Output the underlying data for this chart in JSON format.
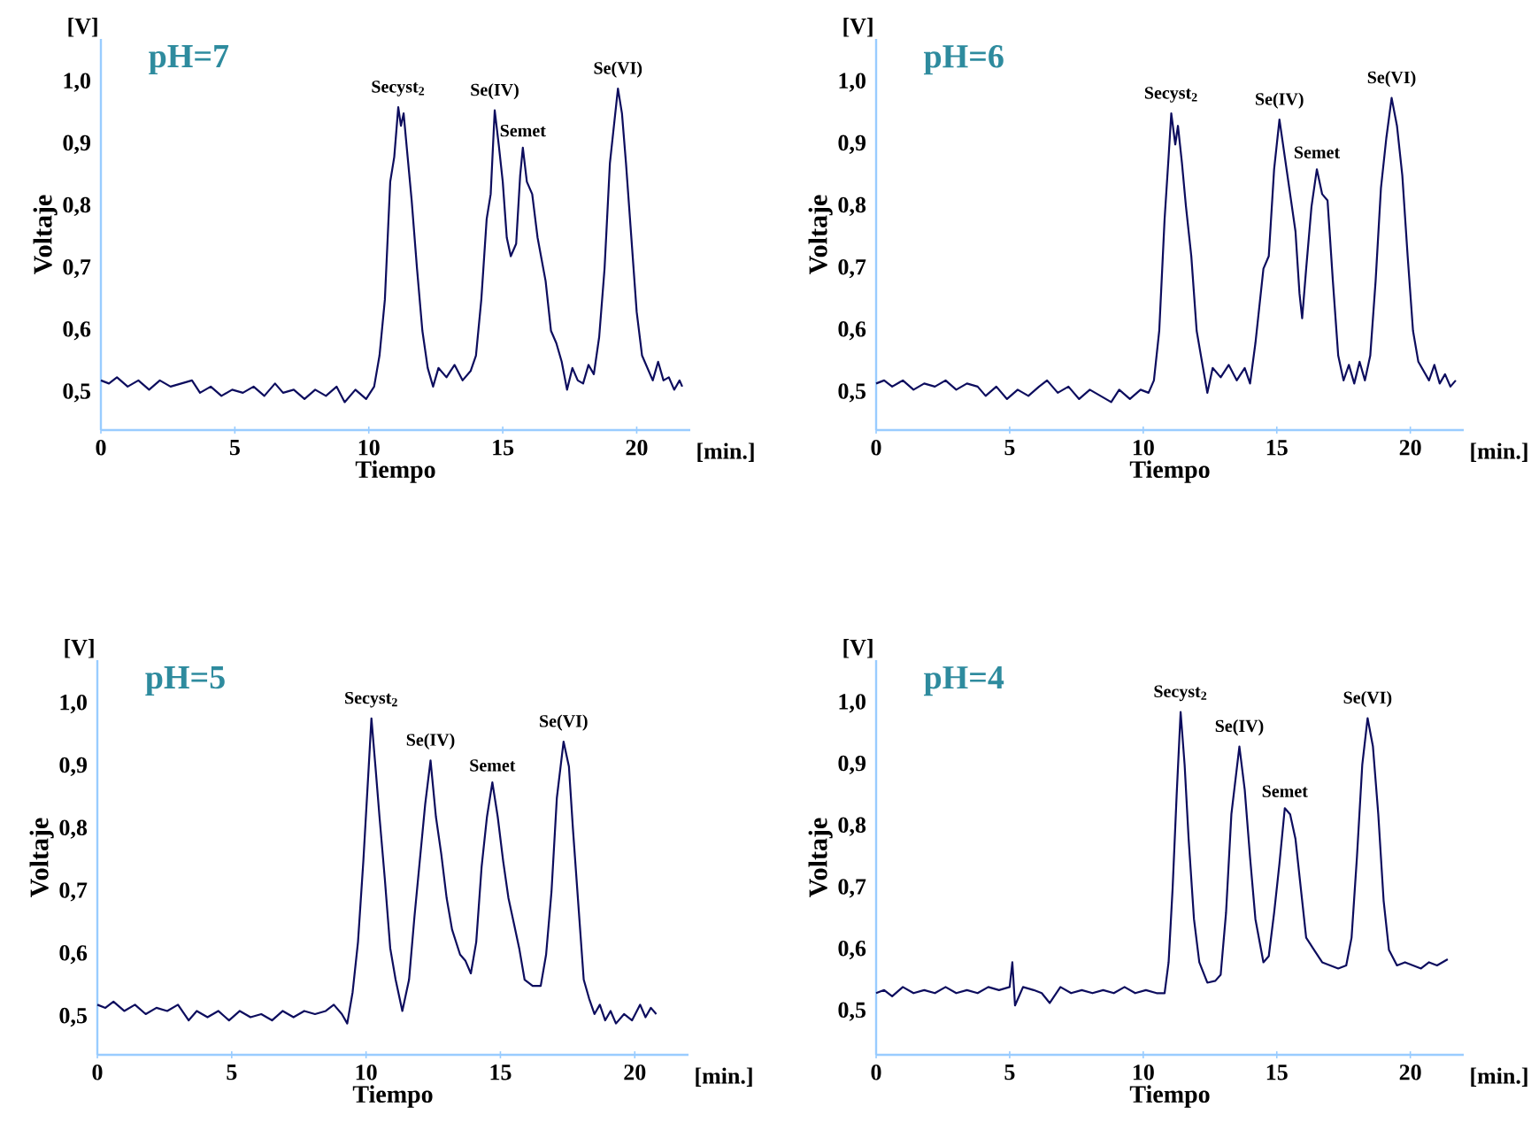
{
  "chart_data": [
    {
      "type": "line",
      "title": "pH=7",
      "xlabel": "Tiempo",
      "ylabel": "Voltaje",
      "color": "#0d0d5e",
      "xlim": [
        0,
        22
      ],
      "ylim": [
        0.44,
        1.07
      ],
      "xticks": [
        0,
        5,
        10,
        15,
        20
      ],
      "yticks": [
        {
          "value": 0.5,
          "label": "0,5"
        },
        {
          "value": 0.6,
          "label": "0,6"
        },
        {
          "value": 0.7,
          "label": "0,7"
        },
        {
          "value": 0.8,
          "label": "0,8"
        },
        {
          "value": 0.9,
          "label": "0,9"
        },
        {
          "value": 1.0,
          "label": "1,0"
        }
      ],
      "annotations": [
        "[V]",
        "[min.]",
        {
          "text": "Secyst$_{2}$",
          "x": 11.1,
          "y": 0.96
        },
        {
          "text": "Se(IV)",
          "x": 14.7,
          "y": 0.955
        },
        {
          "text": "Semet",
          "x": 15.75,
          "y": 0.895
        },
        {
          "text": "Se(VI)",
          "x": 19.3,
          "y": 0.99
        }
      ],
      "x": [
        0,
        0.3,
        0.6,
        1,
        1.4,
        1.8,
        2.2,
        2.6,
        3,
        3.4,
        3.7,
        4.1,
        4.5,
        4.9,
        5.3,
        5.7,
        6.1,
        6.5,
        6.8,
        7.2,
        7.6,
        8,
        8.4,
        8.8,
        9.1,
        9.5,
        9.9,
        10.2,
        10.4,
        10.6,
        10.8,
        10.95,
        11.1,
        11.2,
        11.3,
        11.45,
        11.6,
        11.8,
        12,
        12.2,
        12.4,
        12.6,
        12.9,
        13.2,
        13.5,
        13.8,
        14,
        14.2,
        14.4,
        14.55,
        14.7,
        14.85,
        15,
        15.15,
        15.3,
        15.5,
        15.65,
        15.75,
        15.9,
        16.1,
        16.3,
        16.6,
        16.8,
        17,
        17.2,
        17.4,
        17.6,
        17.8,
        18,
        18.2,
        18.4,
        18.6,
        18.8,
        19,
        19.15,
        19.3,
        19.45,
        19.6,
        19.8,
        20,
        20.2,
        20.4,
        20.6,
        20.8,
        21,
        21.2,
        21.4,
        21.6,
        21.7
      ],
      "values": [
        0.52,
        0.515,
        0.525,
        0.51,
        0.52,
        0.505,
        0.52,
        0.51,
        0.515,
        0.52,
        0.5,
        0.51,
        0.495,
        0.505,
        0.5,
        0.51,
        0.495,
        0.515,
        0.5,
        0.505,
        0.49,
        0.505,
        0.495,
        0.51,
        0.485,
        0.505,
        0.49,
        0.51,
        0.56,
        0.65,
        0.84,
        0.88,
        0.96,
        0.93,
        0.95,
        0.88,
        0.81,
        0.7,
        0.6,
        0.54,
        0.51,
        0.54,
        0.525,
        0.545,
        0.52,
        0.535,
        0.56,
        0.65,
        0.78,
        0.82,
        0.955,
        0.9,
        0.84,
        0.75,
        0.72,
        0.74,
        0.85,
        0.895,
        0.84,
        0.82,
        0.75,
        0.68,
        0.6,
        0.58,
        0.55,
        0.505,
        0.54,
        0.52,
        0.515,
        0.545,
        0.53,
        0.59,
        0.7,
        0.87,
        0.93,
        0.99,
        0.95,
        0.87,
        0.75,
        0.63,
        0.56,
        0.54,
        0.52,
        0.55,
        0.52,
        0.525,
        0.505,
        0.52,
        0.51
      ]
    },
    {
      "type": "line",
      "title": "pH=6",
      "xlabel": "Tiempo",
      "ylabel": "Voltaje",
      "color": "#0d0d5e",
      "xlim": [
        0,
        22
      ],
      "ylim": [
        0.44,
        1.07
      ],
      "xticks": [
        0,
        5,
        10,
        15,
        20
      ],
      "yticks": [
        {
          "value": 0.5,
          "label": "0,5"
        },
        {
          "value": 0.6,
          "label": "0,6"
        },
        {
          "value": 0.7,
          "label": "0,7"
        },
        {
          "value": 0.8,
          "label": "0,8"
        },
        {
          "value": 0.9,
          "label": "0,9"
        },
        {
          "value": 1.0,
          "label": "1,0"
        }
      ],
      "annotations": [
        "[V]",
        "[min.]",
        {
          "text": "Secyst$_{2}$",
          "x": 11.05,
          "y": 0.95
        },
        {
          "text": "Se(IV)",
          "x": 15.1,
          "y": 0.94
        },
        {
          "text": "Semet",
          "x": 16.5,
          "y": 0.86
        },
        {
          "text": "Se(VI)",
          "x": 19.3,
          "y": 0.975
        }
      ],
      "x": [
        0,
        0.3,
        0.6,
        1,
        1.4,
        1.8,
        2.2,
        2.6,
        3,
        3.4,
        3.8,
        4.1,
        4.5,
        4.9,
        5.3,
        5.7,
        6.1,
        6.4,
        6.8,
        7.2,
        7.6,
        8,
        8.4,
        8.8,
        9.1,
        9.5,
        9.9,
        10.2,
        10.4,
        10.6,
        10.8,
        10.95,
        11.05,
        11.2,
        11.3,
        11.45,
        11.6,
        11.8,
        12,
        12.2,
        12.4,
        12.6,
        12.9,
        13.2,
        13.5,
        13.8,
        14,
        14.2,
        14.5,
        14.7,
        14.9,
        15.1,
        15.3,
        15.5,
        15.7,
        15.85,
        15.95,
        16.1,
        16.3,
        16.5,
        16.7,
        16.9,
        17.1,
        17.3,
        17.5,
        17.7,
        17.9,
        18.1,
        18.3,
        18.5,
        18.7,
        18.9,
        19.1,
        19.3,
        19.5,
        19.7,
        19.9,
        20.1,
        20.3,
        20.5,
        20.7,
        20.9,
        21.1,
        21.3,
        21.5,
        21.7
      ],
      "values": [
        0.515,
        0.52,
        0.51,
        0.52,
        0.505,
        0.515,
        0.51,
        0.52,
        0.505,
        0.515,
        0.51,
        0.495,
        0.51,
        0.49,
        0.505,
        0.495,
        0.51,
        0.52,
        0.5,
        0.51,
        0.49,
        0.505,
        0.495,
        0.485,
        0.505,
        0.49,
        0.505,
        0.5,
        0.52,
        0.6,
        0.78,
        0.88,
        0.95,
        0.9,
        0.93,
        0.87,
        0.8,
        0.72,
        0.6,
        0.55,
        0.5,
        0.54,
        0.525,
        0.545,
        0.52,
        0.54,
        0.515,
        0.58,
        0.7,
        0.72,
        0.86,
        0.94,
        0.88,
        0.82,
        0.76,
        0.66,
        0.62,
        0.7,
        0.8,
        0.86,
        0.82,
        0.81,
        0.68,
        0.56,
        0.52,
        0.545,
        0.515,
        0.55,
        0.52,
        0.56,
        0.68,
        0.83,
        0.91,
        0.975,
        0.93,
        0.85,
        0.72,
        0.6,
        0.55,
        0.535,
        0.52,
        0.545,
        0.515,
        0.53,
        0.51,
        0.52
      ]
    },
    {
      "type": "line",
      "title": "pH=5",
      "xlabel": "Tiempo",
      "ylabel": "Voltaje",
      "color": "#0d0d5e",
      "xlim": [
        0,
        22
      ],
      "ylim": [
        0.44,
        1.07
      ],
      "xticks": [
        0,
        5,
        10,
        15,
        20
      ],
      "yticks": [
        {
          "value": 0.5,
          "label": "0,5"
        },
        {
          "value": 0.6,
          "label": "0,6"
        },
        {
          "value": 0.7,
          "label": "0,7"
        },
        {
          "value": 0.8,
          "label": "0,8"
        },
        {
          "value": 0.9,
          "label": "0,9"
        },
        {
          "value": 1.0,
          "label": "1,0"
        }
      ],
      "annotations": [
        "[V]",
        "[min.]",
        {
          "text": "Secyst$_{2}$",
          "x": 10.2,
          "y": 0.977
        },
        {
          "text": "Se(IV)",
          "x": 12.4,
          "y": 0.91
        },
        {
          "text": "Semet",
          "x": 14.7,
          "y": 0.875
        },
        {
          "text": "Se(VI)",
          "x": 17.35,
          "y": 0.94
        }
      ],
      "x": [
        0,
        0.3,
        0.6,
        1,
        1.4,
        1.8,
        2.2,
        2.6,
        3,
        3.4,
        3.7,
        4.1,
        4.5,
        4.9,
        5.3,
        5.7,
        6.1,
        6.5,
        6.9,
        7.3,
        7.7,
        8.1,
        8.5,
        8.8,
        9.1,
        9.3,
        9.5,
        9.7,
        9.9,
        10.1,
        10.2,
        10.35,
        10.5,
        10.7,
        10.9,
        11.1,
        11.35,
        11.6,
        11.8,
        12.0,
        12.2,
        12.4,
        12.6,
        12.8,
        13.0,
        13.2,
        13.5,
        13.7,
        13.9,
        14.1,
        14.3,
        14.5,
        14.7,
        14.9,
        15.1,
        15.3,
        15.5,
        15.7,
        15.9,
        16.2,
        16.5,
        16.7,
        16.9,
        17.1,
        17.35,
        17.55,
        17.7,
        17.9,
        18.1,
        18.3,
        18.5,
        18.7,
        18.9,
        19.1,
        19.3,
        19.6,
        19.9,
        20.2,
        20.4,
        20.6,
        20.8
      ],
      "values": [
        0.52,
        0.515,
        0.525,
        0.51,
        0.52,
        0.505,
        0.515,
        0.51,
        0.52,
        0.495,
        0.51,
        0.5,
        0.51,
        0.495,
        0.51,
        0.5,
        0.505,
        0.495,
        0.51,
        0.5,
        0.51,
        0.505,
        0.51,
        0.52,
        0.505,
        0.49,
        0.54,
        0.62,
        0.75,
        0.9,
        0.977,
        0.9,
        0.82,
        0.72,
        0.61,
        0.56,
        0.51,
        0.56,
        0.66,
        0.75,
        0.84,
        0.91,
        0.82,
        0.76,
        0.69,
        0.64,
        0.6,
        0.59,
        0.57,
        0.62,
        0.74,
        0.82,
        0.875,
        0.82,
        0.75,
        0.69,
        0.65,
        0.61,
        0.56,
        0.55,
        0.55,
        0.6,
        0.7,
        0.85,
        0.94,
        0.9,
        0.8,
        0.68,
        0.56,
        0.53,
        0.505,
        0.52,
        0.495,
        0.51,
        0.49,
        0.505,
        0.495,
        0.52,
        0.5,
        0.515,
        0.505
      ]
    },
    {
      "type": "line",
      "title": "pH=4",
      "xlabel": "Tiempo",
      "ylabel": "Voltaje",
      "color": "#0d0d5e",
      "xlim": [
        0,
        22
      ],
      "ylim": [
        0.43,
        1.07
      ],
      "xticks": [
        0,
        5,
        10,
        15,
        20
      ],
      "yticks": [
        {
          "value": 0.5,
          "label": "0,5"
        },
        {
          "value": 0.6,
          "label": "0,6"
        },
        {
          "value": 0.7,
          "label": "0,7"
        },
        {
          "value": 0.8,
          "label": "0,8"
        },
        {
          "value": 0.9,
          "label": "0,9"
        },
        {
          "value": 1.0,
          "label": "1,0"
        }
      ],
      "annotations": [
        "[V]",
        "[min.]",
        {
          "text": "Secyst$_{2}$",
          "x": 11.4,
          "y": 0.986
        },
        {
          "text": "Se(IV)",
          "x": 13.6,
          "y": 0.93
        },
        {
          "text": "Semet",
          "x": 15.3,
          "y": 0.83
        },
        {
          "text": "Se(VI)",
          "x": 18.4,
          "y": 0.976
        }
      ],
      "x": [
        0,
        0.3,
        0.6,
        1,
        1.4,
        1.8,
        2.2,
        2.6,
        3,
        3.4,
        3.8,
        4.2,
        4.6,
        5,
        5.1,
        5.2,
        5.5,
        5.9,
        6.2,
        6.5,
        6.9,
        7.3,
        7.7,
        8.1,
        8.5,
        8.9,
        9.3,
        9.7,
        10.1,
        10.5,
        10.8,
        10.95,
        11.1,
        11.25,
        11.4,
        11.55,
        11.7,
        11.9,
        12.1,
        12.4,
        12.7,
        12.9,
        13.1,
        13.3,
        13.6,
        13.8,
        14.0,
        14.2,
        14.5,
        14.7,
        14.9,
        15.1,
        15.3,
        15.5,
        15.7,
        15.9,
        16.1,
        16.4,
        16.7,
        17,
        17.3,
        17.6,
        17.8,
        18.0,
        18.2,
        18.4,
        18.6,
        18.8,
        19.0,
        19.2,
        19.5,
        19.8,
        20.1,
        20.4,
        20.7,
        21,
        21.4
      ],
      "values": [
        0.53,
        0.535,
        0.525,
        0.54,
        0.53,
        0.535,
        0.53,
        0.54,
        0.53,
        0.535,
        0.53,
        0.54,
        0.535,
        0.54,
        0.58,
        0.51,
        0.54,
        0.535,
        0.53,
        0.514,
        0.54,
        0.53,
        0.535,
        0.53,
        0.535,
        0.53,
        0.54,
        0.53,
        0.535,
        0.53,
        0.53,
        0.58,
        0.7,
        0.85,
        0.986,
        0.9,
        0.78,
        0.65,
        0.58,
        0.547,
        0.55,
        0.56,
        0.66,
        0.82,
        0.93,
        0.86,
        0.75,
        0.65,
        0.58,
        0.59,
        0.66,
        0.74,
        0.83,
        0.82,
        0.78,
        0.7,
        0.62,
        0.6,
        0.58,
        0.575,
        0.57,
        0.575,
        0.62,
        0.75,
        0.9,
        0.976,
        0.93,
        0.82,
        0.68,
        0.6,
        0.575,
        0.58,
        0.575,
        0.57,
        0.58,
        0.575,
        0.585
      ]
    }
  ]
}
